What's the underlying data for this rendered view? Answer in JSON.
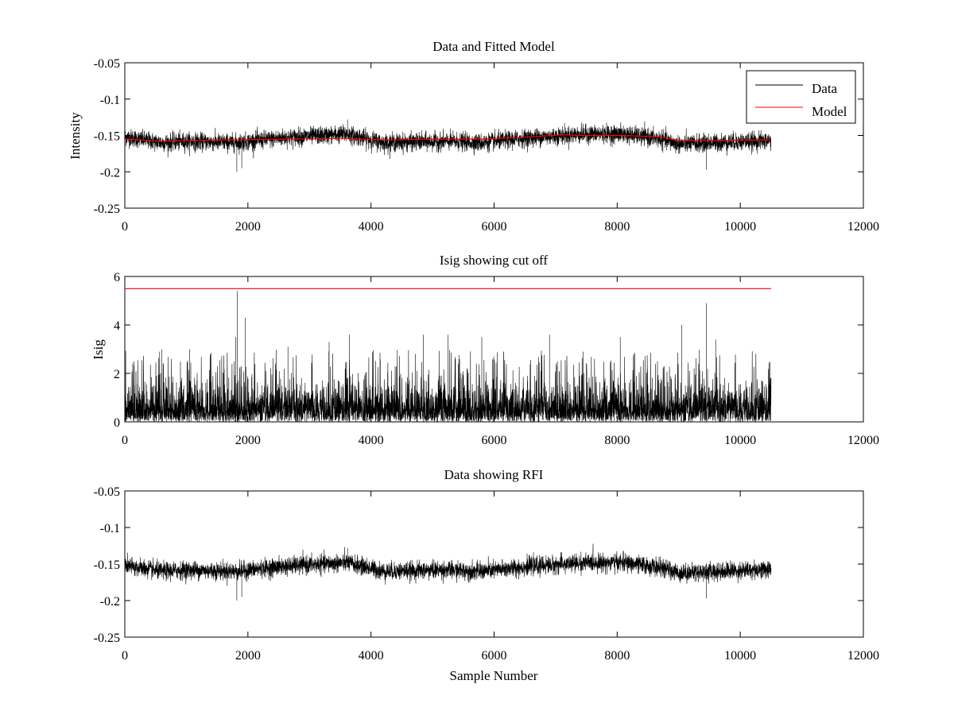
{
  "chart_data": [
    {
      "type": "line",
      "title": "Data and Fitted Model",
      "xlabel": "",
      "ylabel": "Intensity",
      "xlim": [
        0,
        12000
      ],
      "ylim": [
        -0.25,
        -0.05
      ],
      "y_reversed": true,
      "xticks": [
        "0",
        "2000",
        "4000",
        "6000",
        "8000",
        "10000",
        "12000"
      ],
      "yticks": [
        "-0.05",
        "-0.1",
        "-0.15",
        "-0.2",
        "-0.25"
      ],
      "xtick_values": [
        0,
        2000,
        4000,
        6000,
        8000,
        10000,
        12000
      ],
      "ytick_values": [
        -0.05,
        -0.1,
        -0.15,
        -0.2,
        -0.25
      ],
      "legend": {
        "position": "top-right",
        "entries": [
          "Data",
          "Model"
        ]
      },
      "series": [
        {
          "name": "Data",
          "color": "#000000",
          "sample_count": 10500,
          "baseline": {
            "x": [
              0,
              600,
              1000,
              1800,
              2600,
              3600,
              4200,
              5200,
              5800,
              6600,
              7500,
              8100,
              8700,
              9000,
              9600,
              10500
            ],
            "y": [
              -0.152,
              -0.16,
              -0.158,
              -0.16,
              -0.153,
              -0.148,
              -0.16,
              -0.158,
              -0.16,
              -0.153,
              -0.148,
              -0.148,
              -0.155,
              -0.162,
              -0.16,
              -0.157
            ]
          },
          "noise_amplitude": 0.012,
          "spikes": {
            "x": [
              1820,
              1900,
              3620,
              9450
            ],
            "y": [
              -0.2,
              -0.195,
              -0.128,
              -0.197
            ]
          }
        },
        {
          "name": "Model",
          "color": "#ff0000",
          "x": [
            0,
            600,
            1000,
            1800,
            2600,
            3600,
            4200,
            5200,
            5800,
            6600,
            7100,
            7500,
            8100,
            8700,
            9000,
            9600,
            10500
          ],
          "y": [
            -0.155,
            -0.158,
            -0.157,
            -0.156,
            -0.155,
            -0.154,
            -0.156,
            -0.155,
            -0.155,
            -0.152,
            -0.149,
            -0.15,
            -0.15,
            -0.152,
            -0.157,
            -0.157,
            -0.156
          ]
        }
      ]
    },
    {
      "type": "line",
      "title": "Isig showing cut off",
      "xlabel": "",
      "ylabel": "Isig",
      "xlim": [
        0,
        12000
      ],
      "ylim": [
        0,
        6
      ],
      "xticks": [
        "0",
        "2000",
        "4000",
        "6000",
        "8000",
        "10000",
        "12000"
      ],
      "yticks": [
        "0",
        "2",
        "4",
        "6"
      ],
      "xtick_values": [
        0,
        2000,
        4000,
        6000,
        8000,
        10000,
        12000
      ],
      "ytick_values": [
        0,
        2,
        4,
        6
      ],
      "series": [
        {
          "color": "#000000",
          "sample_count": 10500,
          "typical_max": 1.6,
          "spikes": {
            "x": [
              600,
              1050,
              1800,
              1830,
              1960,
              2650,
              3320,
              3650,
              4850,
              5250,
              5800,
              6900,
              8050,
              9050,
              9450,
              9600
            ],
            "y": [
              3.0,
              3.0,
              3.5,
              5.4,
              4.3,
              3.1,
              3.3,
              3.6,
              3.6,
              3.6,
              3.5,
              3.6,
              3.5,
              4.0,
              4.9,
              3.4
            ]
          }
        },
        {
          "color": "#ff0000",
          "x": [
            0,
            10500
          ],
          "y": [
            5.5,
            5.5
          ]
        }
      ]
    },
    {
      "type": "line",
      "title": "Data showing RFI",
      "xlabel": "Sample Number",
      "ylabel": "",
      "xlim": [
        0,
        12000
      ],
      "ylim": [
        -0.25,
        -0.05
      ],
      "y_reversed": true,
      "xticks": [
        "0",
        "2000",
        "4000",
        "6000",
        "8000",
        "10000",
        "12000"
      ],
      "yticks": [
        "-0.05",
        "-0.1",
        "-0.15",
        "-0.2",
        "-0.25"
      ],
      "xtick_values": [
        0,
        2000,
        4000,
        6000,
        8000,
        10000,
        12000
      ],
      "ytick_values": [
        -0.05,
        -0.1,
        -0.15,
        -0.2,
        -0.25
      ],
      "series": [
        {
          "color": "#000000",
          "sample_count": 10500,
          "baseline": {
            "x": [
              0,
              600,
              1000,
              1800,
              2600,
              3600,
              4200,
              5200,
              5800,
              6600,
              7500,
              8100,
              8700,
              9000,
              9600,
              10500
            ],
            "y": [
              -0.152,
              -0.16,
              -0.158,
              -0.16,
              -0.153,
              -0.148,
              -0.16,
              -0.158,
              -0.16,
              -0.153,
              -0.148,
              -0.148,
              -0.155,
              -0.162,
              -0.16,
              -0.157
            ]
          },
          "noise_amplitude": 0.012,
          "spikes": {
            "x": [
              1820,
              1900,
              3620,
              9450
            ],
            "y": [
              -0.2,
              -0.195,
              -0.128,
              -0.197
            ]
          }
        }
      ]
    }
  ]
}
